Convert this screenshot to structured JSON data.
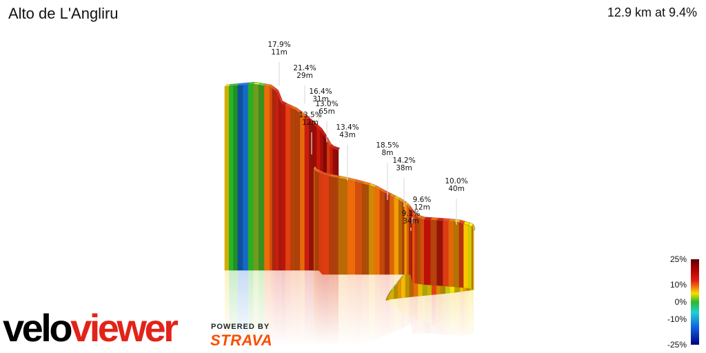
{
  "header": {
    "title": "Alto de L'Angliru",
    "summary": "12.9 km at 9.4%"
  },
  "branding": {
    "logo_part1": "velo",
    "logo_part2": "viewer",
    "powered_by": "POWERED BY",
    "strava": "STRAVA"
  },
  "colors": {
    "viewer_red": "#e2231a",
    "strava_orange": "#fc4c02"
  },
  "chart_data": {
    "type": "area",
    "style": "3D elevation profile coloured by gradient, with faded reflection",
    "segment_gradients_pct": [
      8,
      0,
      0,
      -9,
      -9,
      0,
      3,
      1,
      12,
      13,
      14,
      15,
      16,
      16,
      15,
      17,
      14,
      13,
      13,
      12,
      16,
      17,
      18,
      17,
      18,
      19,
      14,
      17,
      18,
      18,
      20,
      16,
      18,
      19,
      17,
      16,
      16,
      14,
      13,
      12,
      13,
      14,
      14,
      13,
      11,
      12,
      13,
      12,
      10,
      12,
      13,
      14,
      12,
      10,
      11,
      13,
      10,
      12,
      14,
      16,
      13,
      14,
      12,
      13,
      18,
      13,
      17,
      14,
      12,
      10,
      14,
      8,
      6,
      11,
      9,
      4,
      7,
      9,
      10,
      8,
      7,
      8,
      6,
      5,
      9,
      10,
      14,
      7,
      6,
      8,
      12,
      11,
      9,
      9,
      10,
      8,
      7,
      10,
      9,
      6
    ],
    "annotations": [
      {
        "grade": "17.9%",
        "length": "11m"
      },
      {
        "grade": "21.4%",
        "length": "29m"
      },
      {
        "grade": "16.4%",
        "length": "31m"
      },
      {
        "grade": "13.0%",
        "length": "65m"
      },
      {
        "grade": "13.5%",
        "length": "12m"
      },
      {
        "grade": "13.4%",
        "length": "43m"
      },
      {
        "grade": "18.5%",
        "length": "8m"
      },
      {
        "grade": "14.2%",
        "length": "38m"
      },
      {
        "grade": "9.6%",
        "length": "12m"
      },
      {
        "grade": "9.1%",
        "length": "34m"
      },
      {
        "grade": "10.0%",
        "length": "40m"
      }
    ],
    "colorscale": {
      "min_pct": -25,
      "max_pct": 25,
      "tick_labels": [
        "25%",
        "10%",
        "0%",
        "-10%",
        "-25%"
      ],
      "tick_values": [
        25,
        10,
        0,
        -10,
        -25
      ]
    }
  }
}
